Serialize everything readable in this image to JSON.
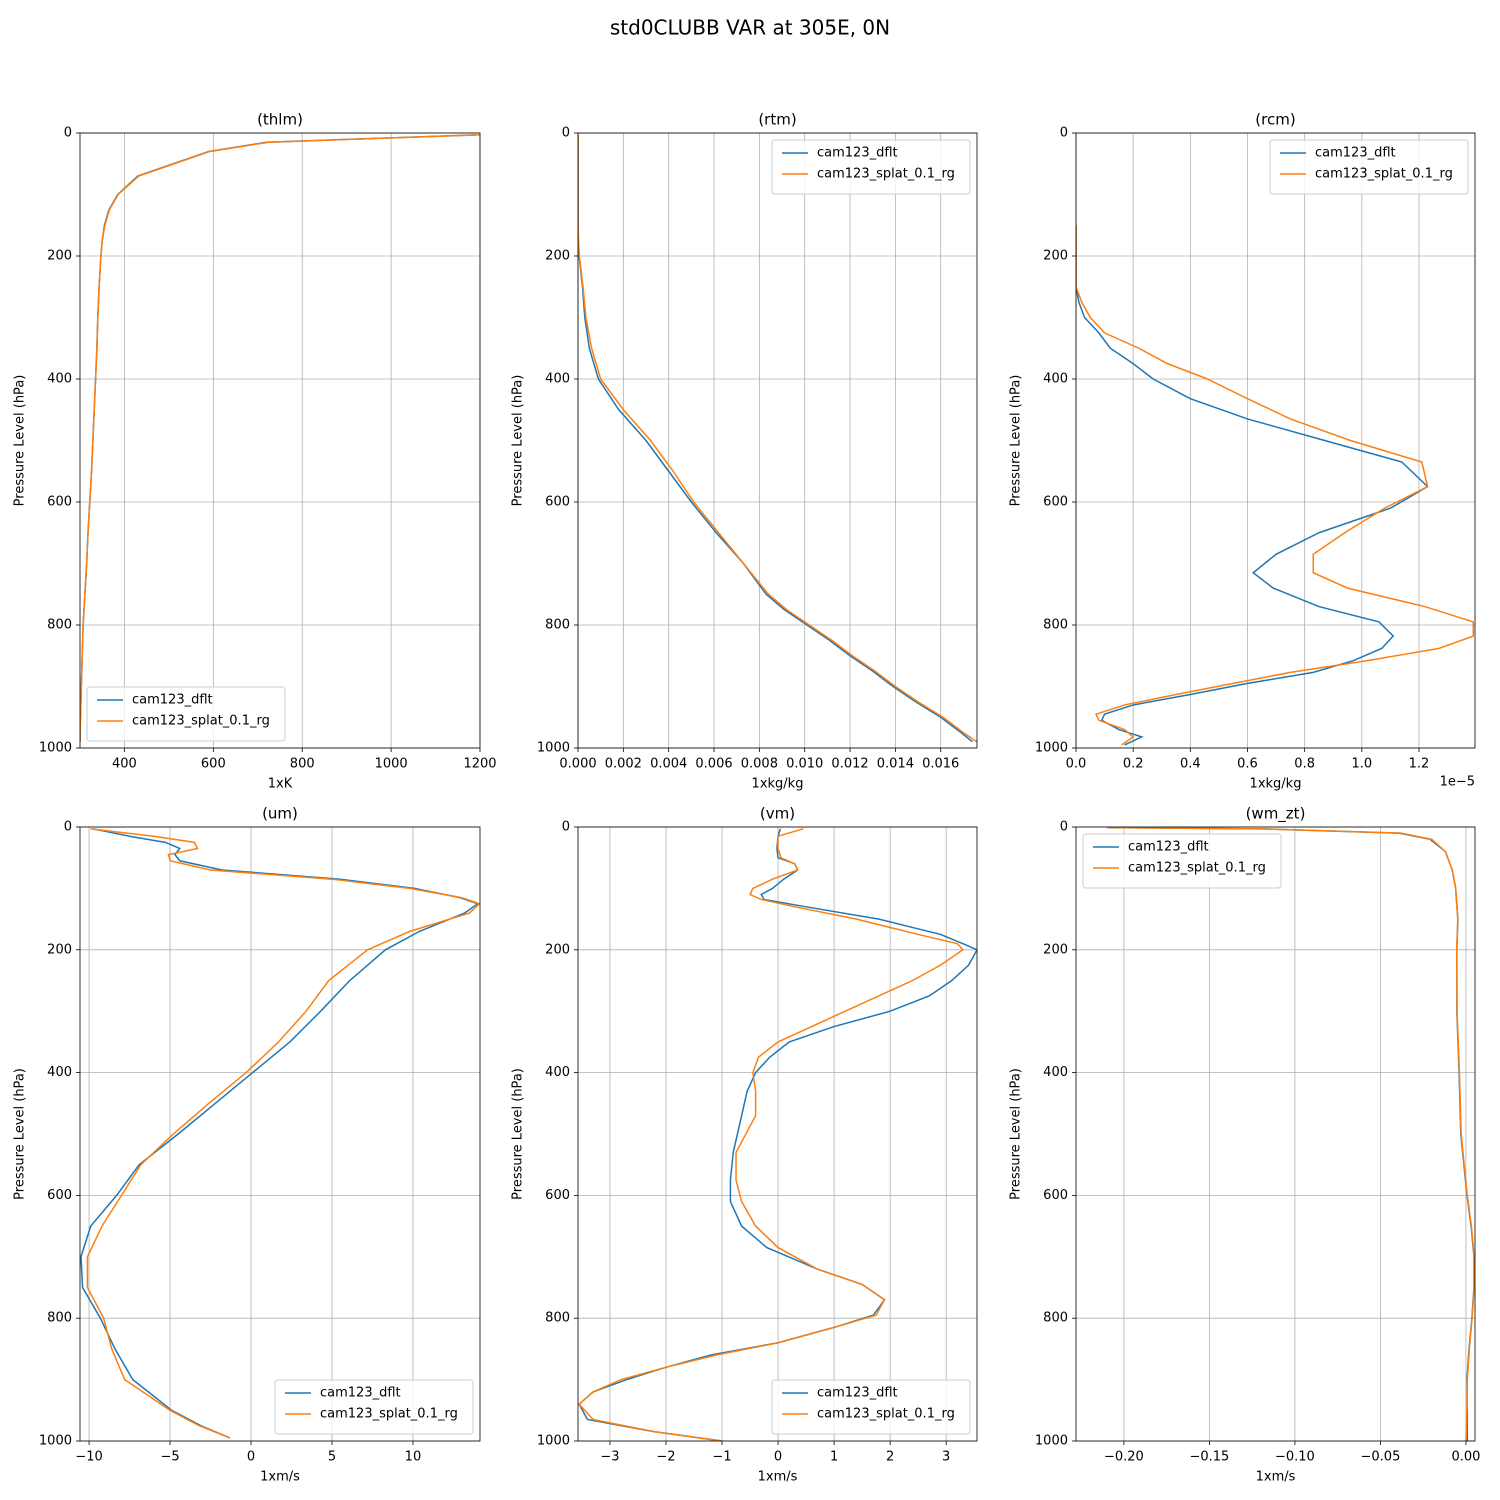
{
  "title": "std0CLUBB VAR at 305E, 0N",
  "chart_data": [
    {
      "type": "line",
      "title": "(thlm)",
      "xlabel": "1xK",
      "ylabel": "Pressure Level (hPa)",
      "grid": true,
      "legend": "lower left",
      "y": [
        3,
        15,
        30,
        50,
        70,
        100,
        125,
        150,
        175,
        200,
        250,
        300,
        350,
        400,
        450,
        500,
        550,
        600,
        650,
        700,
        750,
        775,
        800,
        825,
        850,
        875,
        900,
        925,
        950,
        975,
        990
      ],
      "xlim": [
        300,
        1200
      ],
      "xticks": [
        400,
        600,
        800,
        1000,
        1200
      ],
      "ylim": [
        1000,
        0
      ],
      "yticks": [
        0,
        200,
        400,
        600,
        800,
        1000
      ],
      "series": [
        {
          "name": "cam123_dflt",
          "color": "#1f77b4",
          "values": [
            1190,
            720,
            590,
            510,
            430,
            385,
            365,
            355,
            350,
            347,
            343,
            340,
            338,
            335,
            332,
            329,
            326,
            322,
            318,
            315,
            311,
            309,
            307,
            306,
            305,
            304,
            303,
            302,
            301,
            300,
            300
          ]
        },
        {
          "name": "cam123_splat_0.1_rg",
          "color": "#ff7f0e",
          "values": [
            1200,
            725,
            592,
            512,
            432,
            386,
            366,
            356,
            350,
            347,
            343,
            340,
            338,
            335,
            332,
            329,
            326,
            322,
            318,
            315,
            311,
            309,
            307,
            306,
            305,
            304,
            303,
            302,
            301,
            300,
            300
          ]
        }
      ]
    },
    {
      "type": "line",
      "title": "(rtm)",
      "xlabel": "1xkg/kg",
      "ylabel": "Pressure Level (hPa)",
      "grid": true,
      "legend": "upper right",
      "y": [
        3,
        15,
        30,
        50,
        70,
        100,
        125,
        150,
        175,
        200,
        250,
        300,
        350,
        400,
        450,
        500,
        550,
        600,
        650,
        700,
        750,
        775,
        800,
        825,
        850,
        875,
        900,
        925,
        950,
        975,
        990
      ],
      "xlim": [
        0,
        0.0176
      ],
      "xticks": [
        {
          "value": 0,
          "label": "0.000"
        },
        {
          "value": 0.002,
          "label": "0.002"
        },
        {
          "value": 0.004,
          "label": "0.004"
        },
        {
          "value": 0.006,
          "label": "0.006"
        },
        {
          "value": 0.008,
          "label": "0.008"
        },
        {
          "value": 0.01,
          "label": "0.010"
        },
        {
          "value": 0.012,
          "label": "0.012"
        },
        {
          "value": 0.014,
          "label": "0.014"
        },
        {
          "value": 0.016,
          "label": "0.016"
        }
      ],
      "ylim": [
        1000,
        0
      ],
      "yticks": [
        0,
        200,
        400,
        600,
        800,
        1000
      ],
      "series": [
        {
          "name": "cam123_dflt",
          "color": "#1f77b4",
          "values": [
            0,
            0,
            0,
            0,
            0,
            0,
            0,
            0,
            2e-05,
            5e-05,
            0.0002,
            0.0003,
            0.0005,
            0.0009,
            0.0018,
            0.003,
            0.004,
            0.005,
            0.0061,
            0.0073,
            0.0083,
            0.0091,
            0.0101,
            0.0111,
            0.012,
            0.013,
            0.0139,
            0.0149,
            0.016,
            0.0169,
            0.0174
          ]
        },
        {
          "name": "cam123_splat_0.1_rg",
          "color": "#ff7f0e",
          "values": [
            0,
            0,
            0,
            0,
            0,
            0,
            0,
            0,
            2e-05,
            6e-05,
            0.00022,
            0.00035,
            0.0006,
            0.001,
            0.002,
            0.0032,
            0.0042,
            0.0051,
            0.0062,
            0.0073,
            0.0084,
            0.0092,
            0.0102,
            0.0112,
            0.0121,
            0.0131,
            0.014,
            0.015,
            0.0161,
            0.017,
            0.0176
          ]
        }
      ]
    },
    {
      "type": "line",
      "title": "(rcm)",
      "xlabel": "1xkg/kg",
      "ylabel": "Pressure Level (hPa)",
      "grid": true,
      "legend": "upper right",
      "offset_text": "1e−5",
      "y": [
        150,
        200,
        250,
        275,
        300,
        325,
        350,
        375,
        400,
        432,
        465,
        500,
        535,
        575,
        610,
        650,
        685,
        715,
        740,
        770,
        795,
        818,
        838,
        858,
        877,
        895,
        913,
        930,
        945,
        955,
        970,
        982,
        995
      ],
      "xlim": [
        0,
        1.396
      ],
      "xticks": [
        {
          "value": 0,
          "label": "0.0"
        },
        0.2,
        0.4,
        0.6,
        0.8,
        {
          "value": 1,
          "label": "1.0"
        },
        1.2
      ],
      "ylim": [
        1000,
        0
      ],
      "yticks": [
        0,
        200,
        400,
        600,
        800,
        1000
      ],
      "series": [
        {
          "name": "cam123_dflt",
          "color": "#1f77b4",
          "values": [
            0,
            0,
            0,
            0.01,
            0.03,
            0.08,
            0.12,
            0.2,
            0.27,
            0.4,
            0.6,
            0.87,
            1.14,
            1.23,
            1.1,
            0.85,
            0.7,
            0.62,
            0.69,
            0.85,
            1.06,
            1.11,
            1.07,
            0.97,
            0.83,
            0.6,
            0.4,
            0.2,
            0.1,
            0.09,
            0.15,
            0.23,
            0.17
          ]
        },
        {
          "name": "cam123_splat_0.1_rg",
          "color": "#ff7f0e",
          "values": [
            0,
            0,
            0,
            0.02,
            0.05,
            0.1,
            0.22,
            0.32,
            0.46,
            0.6,
            0.75,
            0.96,
            1.21,
            1.23,
            1.08,
            0.94,
            0.83,
            0.83,
            0.95,
            1.22,
            1.39,
            1.39,
            1.27,
            1.02,
            0.75,
            0.55,
            0.35,
            0.17,
            0.07,
            0.08,
            0.17,
            0.2,
            0.16
          ]
        }
      ]
    },
    {
      "type": "line",
      "title": "(um)",
      "xlabel": "1xm/s",
      "ylabel": "Pressure Level (hPa)",
      "grid": true,
      "legend": "lower right",
      "y": [
        3,
        15,
        25,
        35,
        45,
        55,
        70,
        85,
        100,
        115,
        125,
        140,
        170,
        200,
        250,
        300,
        350,
        400,
        450,
        500,
        550,
        600,
        650,
        700,
        750,
        800,
        850,
        900,
        950,
        975,
        995
      ],
      "xlim": [
        -10.56,
        14.14
      ],
      "xticks": [
        {
          "value": -10,
          "label": "−10"
        },
        {
          "value": -5,
          "label": "−5"
        },
        0,
        5,
        10
      ],
      "ylim": [
        1000,
        0
      ],
      "yticks": [
        0,
        200,
        400,
        600,
        800,
        1000
      ],
      "series": [
        {
          "name": "cam123_dflt",
          "color": "#1f77b4",
          "values": [
            -9.75,
            -7.5,
            -5.3,
            -4.4,
            -4.7,
            -4.4,
            -1.8,
            5.5,
            10.1,
            12.9,
            14.0,
            13.2,
            10.4,
            8.3,
            6.1,
            4.3,
            2.4,
            0.1,
            -2.2,
            -4.5,
            -6.9,
            -8.3,
            -9.9,
            -10.5,
            -10.4,
            -9.3,
            -8.4,
            -7.3,
            -4.9,
            -3.1,
            -1.3
          ]
        },
        {
          "name": "cam123_splat_0.1_rg",
          "color": "#ff7f0e",
          "values": [
            -9.9,
            -6,
            -3.5,
            -3.3,
            -5.1,
            -5.0,
            -2.5,
            5.0,
            9.8,
            13.0,
            14.1,
            13.5,
            9.8,
            7.2,
            4.8,
            3.4,
            1.7,
            -0.3,
            -2.6,
            -4.8,
            -6.8,
            -8.0,
            -9.2,
            -10.1,
            -10.1,
            -9.1,
            -8.6,
            -7.8,
            -5.0,
            -3.2,
            -1.3
          ]
        }
      ]
    },
    {
      "type": "line",
      "title": "(vm)",
      "xlabel": "1xm/s",
      "ylabel": "Pressure Level (hPa)",
      "grid": true,
      "legend": "lower right",
      "y": [
        3,
        15,
        35,
        50,
        60,
        70,
        85,
        100,
        110,
        118,
        130,
        150,
        175,
        190,
        200,
        225,
        250,
        275,
        300,
        325,
        350,
        375,
        400,
        430,
        470,
        530,
        575,
        610,
        650,
        685,
        720,
        745,
        770,
        795,
        815,
        840,
        860,
        880,
        900,
        920,
        940,
        965,
        985,
        1000
      ],
      "xlim": [
        -3.57,
        3.55
      ],
      "xticks": [
        {
          "value": -3,
          "label": "−3"
        },
        {
          "value": -2,
          "label": "−2"
        },
        {
          "value": -1,
          "label": "−1"
        },
        0,
        1,
        2,
        3
      ],
      "ylim": [
        1000,
        0
      ],
      "yticks": [
        0,
        200,
        400,
        600,
        800,
        1000
      ],
      "series": [
        {
          "name": "cam123_dflt",
          "color": "#1f77b4",
          "values": [
            0.04,
            0.0,
            -0.02,
            0.0,
            0.3,
            0.35,
            0.1,
            -0.1,
            -0.3,
            -0.25,
            0.5,
            1.8,
            2.9,
            3.3,
            3.55,
            3.4,
            3.1,
            2.7,
            2.0,
            1.0,
            0.2,
            -0.15,
            -0.4,
            -0.55,
            -0.65,
            -0.8,
            -0.85,
            -0.85,
            -0.65,
            -0.2,
            0.7,
            1.5,
            1.9,
            1.7,
            1.0,
            0.0,
            -1.2,
            -2.0,
            -2.7,
            -3.3,
            -3.55,
            -3.4,
            -2.2,
            -1.0
          ]
        },
        {
          "name": "cam123_splat_0.1_rg",
          "color": "#ff7f0e",
          "values": [
            0.45,
            0.0,
            0.0,
            0.05,
            0.3,
            0.35,
            -0.1,
            -0.45,
            -0.5,
            -0.3,
            0.3,
            1.4,
            2.5,
            3.2,
            3.3,
            2.9,
            2.4,
            1.8,
            1.2,
            0.6,
            0.0,
            -0.35,
            -0.45,
            -0.4,
            -0.4,
            -0.75,
            -0.75,
            -0.65,
            -0.4,
            0.0,
            0.7,
            1.5,
            1.9,
            1.75,
            1.0,
            0.0,
            -1.1,
            -2.0,
            -2.8,
            -3.3,
            -3.55,
            -3.3,
            -2.2,
            -1.0
          ]
        }
      ]
    },
    {
      "type": "line",
      "title": "(wm_zt)",
      "xlabel": "1xm/s",
      "ylabel": "Pressure Level (hPa)",
      "grid": true,
      "legend": "upper left",
      "y": [
        1,
        3,
        10,
        20,
        40,
        70,
        100,
        150,
        200,
        300,
        400,
        500,
        600,
        650,
        700,
        750,
        800,
        850,
        900,
        950,
        1000
      ],
      "xlim": [
        -0.228,
        0.0053
      ],
      "xticks": [
        {
          "value": -0.2,
          "label": "−0.20"
        },
        {
          "value": -0.15,
          "label": "−0.15"
        },
        {
          "value": -0.1,
          "label": "−0.10"
        },
        {
          "value": -0.05,
          "label": "−0.05"
        },
        {
          "value": 0,
          "label": "0.00"
        }
      ],
      "ylim": [
        1000,
        0
      ],
      "yticks": [
        0,
        200,
        400,
        600,
        800,
        1000
      ],
      "series": [
        {
          "name": "cam123_dflt",
          "color": "#1f77b4",
          "values": [
            -0.208,
            -0.12,
            -0.039,
            -0.021,
            -0.012,
            -0.008,
            -0.006,
            -0.0047,
            -0.0053,
            -0.0053,
            -0.004,
            -0.003,
            0.0006,
            0.003,
            0.0047,
            0.0047,
            0.0035,
            0.0018,
            0.0006,
            0.0008,
            0.0008
          ]
        },
        {
          "name": "cam123_splat_0.1_rg",
          "color": "#ff7f0e",
          "values": [
            -0.21,
            -0.12,
            -0.038,
            -0.02,
            -0.012,
            -0.008,
            -0.006,
            -0.0048,
            -0.0054,
            -0.0052,
            -0.0038,
            -0.0028,
            0.0008,
            0.0032,
            0.0048,
            0.0048,
            0.0036,
            0.002,
            0.0008,
            0.0006,
            0.0
          ]
        }
      ]
    }
  ]
}
